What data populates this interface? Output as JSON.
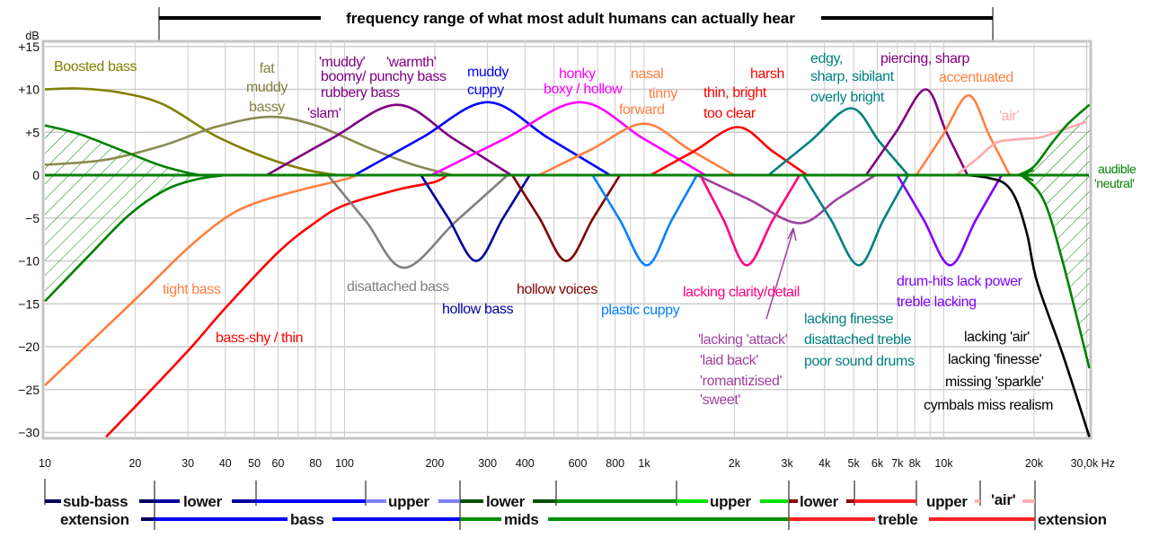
{
  "title": "frequency range of what most adult humans can actually hear",
  "chart_data": {
    "type": "line",
    "x_scale": "log",
    "xlim_hz": [
      10,
      30600
    ],
    "ylim_db": [
      -30,
      15
    ],
    "grid": true,
    "y_unit": "dB",
    "x_unit": "Hz",
    "y_ticks": [
      {
        "db": 15,
        "label": "+15"
      },
      {
        "db": 10,
        "label": "+10"
      },
      {
        "db": 5,
        "label": "+5"
      },
      {
        "db": 0,
        "label": "0"
      },
      {
        "db": -5,
        "label": "−5"
      },
      {
        "db": -10,
        "label": "−10"
      },
      {
        "db": -15,
        "label": "−15"
      },
      {
        "db": -20,
        "label": "−20"
      },
      {
        "db": -25,
        "label": "−25"
      },
      {
        "db": -30,
        "label": "−30"
      }
    ],
    "x_ticks": [
      {
        "hz": 10,
        "label": "10"
      },
      {
        "hz": 20,
        "label": "20"
      },
      {
        "hz": 30,
        "label": "30"
      },
      {
        "hz": 40,
        "label": "40"
      },
      {
        "hz": 50,
        "label": "50"
      },
      {
        "hz": 60,
        "label": "60"
      },
      {
        "hz": 80,
        "label": "80"
      },
      {
        "hz": 100,
        "label": "100"
      },
      {
        "hz": 200,
        "label": "200"
      },
      {
        "hz": 300,
        "label": "300"
      },
      {
        "hz": 400,
        "label": "400"
      },
      {
        "hz": 600,
        "label": "600"
      },
      {
        "hz": 800,
        "label": "800"
      },
      {
        "hz": 1000,
        "label": "1k"
      },
      {
        "hz": 2000,
        "label": "2k"
      },
      {
        "hz": 3000,
        "label": "3k"
      },
      {
        "hz": 4000,
        "label": "4k"
      },
      {
        "hz": 5000,
        "label": "5k"
      },
      {
        "hz": 6000,
        "label": "6k"
      },
      {
        "hz": 7000,
        "label": "7k"
      },
      {
        "hz": 8000,
        "label": "8k"
      },
      {
        "hz": 10000,
        "label": "10k"
      },
      {
        "hz": 20000,
        "label": "20k"
      },
      {
        "hz": 30000,
        "label": "30,0k Hz"
      }
    ],
    "baseline_color": "#008000",
    "curves": [
      {
        "color": "#808000",
        "points": [
          [
            10,
            10
          ],
          [
            13,
            10.1
          ],
          [
            18,
            9.6
          ],
          [
            25,
            8.2
          ],
          [
            37,
            4.6
          ],
          [
            55,
            2
          ],
          [
            75,
            0.6
          ],
          [
            95,
            0
          ]
        ]
      },
      {
        "color": "#8a8a50",
        "points": [
          [
            10,
            1.2
          ],
          [
            16,
            1.8
          ],
          [
            25,
            3.5
          ],
          [
            37,
            5.6
          ],
          [
            56,
            6.8
          ],
          [
            80,
            5.8
          ],
          [
            120,
            3.2
          ],
          [
            170,
            1.2
          ],
          [
            230,
            0
          ]
        ]
      },
      {
        "color": "#008000",
        "points": [
          [
            10,
            5.8
          ],
          [
            13,
            4.8
          ],
          [
            18,
            2.9
          ],
          [
            24,
            1.2
          ],
          [
            29,
            0.4
          ],
          [
            33,
            0
          ]
        ]
      },
      {
        "color": "#008000",
        "points": [
          [
            10,
            -14.7
          ],
          [
            14,
            -9.4
          ],
          [
            19,
            -4.7
          ],
          [
            25,
            -1.8
          ],
          [
            32,
            -0.5
          ],
          [
            40,
            0
          ]
        ]
      },
      {
        "color": "#ff8040",
        "points": [
          [
            10,
            -24.5
          ],
          [
            20,
            -14.5
          ],
          [
            30,
            -8.5
          ],
          [
            40,
            -5
          ],
          [
            50,
            -3.3
          ],
          [
            70,
            -1.8
          ],
          [
            100,
            -0.5
          ],
          [
            110,
            0
          ]
        ]
      },
      {
        "color": "#ff0000",
        "points": [
          [
            16,
            -30.5
          ],
          [
            20,
            -27
          ],
          [
            30,
            -20.5
          ],
          [
            40,
            -15.5
          ],
          [
            60,
            -9
          ],
          [
            80,
            -5.5
          ],
          [
            100,
            -3.5
          ],
          [
            150,
            -1.7
          ],
          [
            200,
            -0.8
          ],
          [
            220,
            0
          ]
        ]
      },
      {
        "color": "#800080",
        "points": [
          [
            55,
            0
          ],
          [
            91,
            4.3
          ],
          [
            150,
            8.2
          ],
          [
            232,
            4.2
          ],
          [
            360,
            0
          ]
        ]
      },
      {
        "color": "#0000ff",
        "points": [
          [
            108,
            0
          ],
          [
            180,
            4.3
          ],
          [
            300,
            8.5
          ],
          [
            480,
            4.3
          ],
          [
            770,
            0
          ]
        ]
      },
      {
        "color": "#ff00ff",
        "points": [
          [
            195,
            0
          ],
          [
            345,
            4.3
          ],
          [
            610,
            8.5
          ],
          [
            990,
            4.3
          ],
          [
            1600,
            0
          ]
        ]
      },
      {
        "color": "#ff8040",
        "points": [
          [
            445,
            0
          ],
          [
            667,
            3
          ],
          [
            1000,
            6
          ],
          [
            1414,
            3
          ],
          [
            2000,
            0
          ]
        ]
      },
      {
        "color": "#ff0000",
        "points": [
          [
            1050,
            0
          ],
          [
            1467,
            2.8
          ],
          [
            2050,
            5.6
          ],
          [
            2680,
            2.8
          ],
          [
            3500,
            0
          ]
        ]
      },
      {
        "color": "#008080",
        "points": [
          [
            2600,
            0
          ],
          [
            3570,
            3.9
          ],
          [
            4900,
            7.8
          ],
          [
            6100,
            3.9
          ],
          [
            7600,
            0
          ]
        ]
      },
      {
        "color": "#800080",
        "points": [
          [
            5500,
            0
          ],
          [
            6920,
            5
          ],
          [
            8700,
            10
          ],
          [
            10200,
            5
          ],
          [
            12000,
            0
          ]
        ]
      },
      {
        "color": "#ff8040",
        "points": [
          [
            8100,
            0
          ],
          [
            9900,
            4.6
          ],
          [
            12100,
            9.3
          ],
          [
            14200,
            4.6
          ],
          [
            16600,
            0
          ]
        ]
      },
      {
        "color": "#ffaaaa",
        "points": [
          [
            11000,
            0
          ],
          [
            13000,
            2
          ],
          [
            15000,
            3.8
          ],
          [
            18000,
            4.2
          ],
          [
            21000,
            4.4
          ],
          [
            25000,
            5.3
          ],
          [
            30000,
            6.2
          ]
        ]
      },
      {
        "color": "#008000",
        "points": [
          [
            17700,
            0
          ],
          [
            20000,
            1
          ],
          [
            22900,
            3.7
          ],
          [
            26000,
            6
          ],
          [
            30600,
            8.2
          ]
        ]
      },
      {
        "color": "#008000",
        "points": [
          [
            17500,
            0
          ],
          [
            18600,
            -0.3
          ],
          [
            21600,
            -3
          ],
          [
            24900,
            -10
          ],
          [
            30600,
            -22.5
          ]
        ]
      },
      {
        "color": "#808080",
        "points": [
          [
            88,
            0
          ],
          [
            118,
            -5.4
          ],
          [
            158,
            -10.8
          ],
          [
            235,
            -5.4
          ],
          [
            350,
            0
          ]
        ]
      },
      {
        "color": "#0000a0",
        "points": [
          [
            180,
            0
          ],
          [
            222,
            -5
          ],
          [
            275,
            -10
          ],
          [
            338,
            -5
          ],
          [
            415,
            0
          ]
        ]
      },
      {
        "color": "#800000",
        "points": [
          [
            363,
            0
          ],
          [
            447,
            -5
          ],
          [
            550,
            -10
          ],
          [
            676,
            -5
          ],
          [
            830,
            0
          ]
        ]
      },
      {
        "color": "#0080ff",
        "points": [
          [
            673,
            0
          ],
          [
            829,
            -5.2
          ],
          [
            1020,
            -10.5
          ],
          [
            1237,
            -5.2
          ],
          [
            1500,
            0
          ]
        ]
      },
      {
        "color": "#ff0080",
        "points": [
          [
            1540,
            0
          ],
          [
            1840,
            -5.2
          ],
          [
            2200,
            -10.5
          ],
          [
            2690,
            -5.2
          ],
          [
            3300,
            0
          ]
        ]
      },
      {
        "color": "#a040a0",
        "points": [
          [
            1500,
            0
          ],
          [
            2225,
            -2.8
          ],
          [
            3300,
            -5.6
          ],
          [
            4410,
            -2.8
          ],
          [
            5900,
            0
          ]
        ]
      },
      {
        "color": "#008080",
        "points": [
          [
            3400,
            0
          ],
          [
            4200,
            -5.2
          ],
          [
            5200,
            -10.5
          ],
          [
            6290,
            -5.2
          ],
          [
            7600,
            0
          ]
        ]
      },
      {
        "color": "#8000ff",
        "points": [
          [
            7000,
            0
          ],
          [
            8570,
            -5.2
          ],
          [
            10500,
            -10.5
          ],
          [
            12800,
            -5.2
          ],
          [
            15600,
            0
          ]
        ]
      },
      {
        "color": "#000000",
        "points": [
          [
            12000,
            0
          ],
          [
            14000,
            -0.3
          ],
          [
            16000,
            -1
          ],
          [
            17500,
            -3
          ],
          [
            19000,
            -7
          ],
          [
            20500,
            -12.5
          ],
          [
            25000,
            -21
          ],
          [
            30600,
            -30.5
          ]
        ]
      }
    ],
    "annotations": [
      "Boosted bass",
      "fat",
      "muddy",
      "bassy",
      "'muddy'",
      "'warmth'",
      "boomy/ punchy bass",
      "rubbery bass",
      "'slam'",
      "muddy",
      "cuppy",
      "honky",
      "boxy / hollow",
      "nasal",
      "tinny",
      "forward",
      "harsh",
      "thin, bright",
      "too clear",
      "edgy,",
      "sharp, sibilant",
      "overly bright",
      "piercing, sharp",
      "accentuated",
      "'air'",
      "audible",
      "'neutral'",
      "tight bass",
      "bass-shy / thin",
      "disattached bass",
      "hollow bass",
      "hollow voices",
      "plastic cuppy",
      "lacking clarity/detail",
      "'lacking 'attack'",
      "'laid back'",
      "'romantizised'",
      "'sweet'",
      "lacking finesse",
      "disattached treble",
      "poor sound drums",
      "drum-hits lack power",
      "treble lacking",
      "lacking 'air'",
      "lacking 'finesse'",
      "missing 'sparkle'",
      "cymbals miss realism"
    ]
  },
  "bands": {
    "row1": [
      "sub-bass",
      "lower",
      "upper",
      "lower",
      "upper",
      "lower",
      "upper",
      "'air'"
    ],
    "row2": [
      "extension",
      "bass",
      "mids",
      "treble",
      "extension"
    ],
    "colors": {
      "sub_bass": "#000060",
      "lower_bass": "#0000a0",
      "bass": "#0000ff",
      "upper_bass": "#8080ff",
      "lower_mids": "#005000",
      "mids": "#009000",
      "upper_mids": "#00e000",
      "lower_treble": "#900000",
      "treble": "#ff2020",
      "air": "#ffb0b0"
    }
  }
}
